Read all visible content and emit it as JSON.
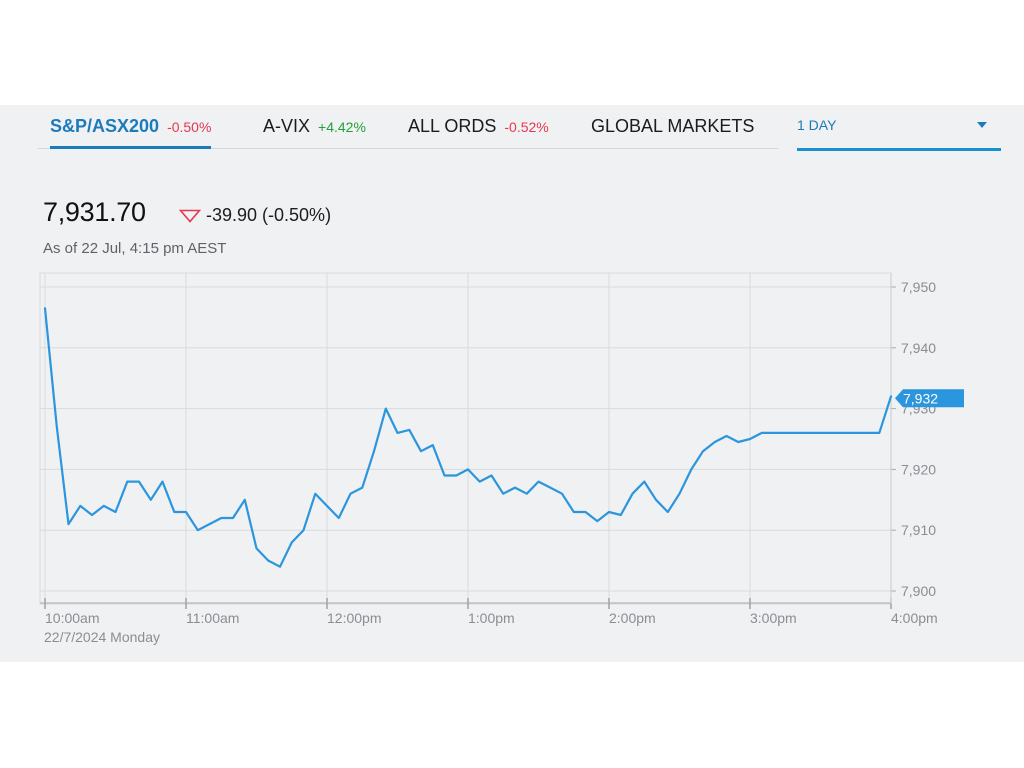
{
  "tabs": [
    {
      "name": "S&P/ASX200",
      "change": "-0.50%",
      "change_color": "#e8384f",
      "active": true
    },
    {
      "name": "A-VIX",
      "change": "+4.42%",
      "change_color": "#22a03c",
      "active": false
    },
    {
      "name": "ALL ORDS",
      "change": "-0.52%",
      "change_color": "#e8384f",
      "active": false
    },
    {
      "name": "GLOBAL MARKETS",
      "change": "",
      "active": false
    }
  ],
  "period": {
    "label": "1 DAY",
    "icon": "chevron-down-icon"
  },
  "quote": {
    "value": "7,931.70",
    "change": "-39.90 (-0.50%)",
    "direction_icon": "triangle-down-icon",
    "down_color": "#e8384f",
    "as_of": "As of 22 Jul, 4:15 pm AEST"
  },
  "colors": {
    "line": "#2b95dd",
    "grid": "#d8dbde",
    "accent": "#1c7bbd"
  },
  "chart_data": {
    "type": "line",
    "date_label": "22/7/2024 Monday",
    "x_tick_labels": [
      "10:00am",
      "11:00am",
      "12:00pm",
      "1:00pm",
      "2:00pm",
      "3:00pm",
      "4:00pm"
    ],
    "y_tick_labels": [
      "7,950",
      "7,940",
      "7,930",
      "7,920",
      "7,910",
      "7,900"
    ],
    "ylim": [
      7898,
      7951
    ],
    "xlim": [
      "10:00",
      "16:00"
    ],
    "current_value_label": "7,932",
    "current_value": 7931.7,
    "grid": true,
    "series": [
      {
        "x": [
          "10:00",
          "10:05",
          "10:10",
          "10:15",
          "10:20",
          "10:25",
          "10:30",
          "10:35",
          "10:40",
          "10:45",
          "10:50",
          "10:55",
          "11:00",
          "11:05",
          "11:10",
          "11:15",
          "11:20",
          "11:25",
          "11:30",
          "11:35",
          "11:40",
          "11:45",
          "11:50",
          "11:55",
          "12:00",
          "12:05",
          "12:10",
          "12:15",
          "12:20",
          "12:25",
          "12:30",
          "12:35",
          "12:40",
          "12:45",
          "12:50",
          "12:55",
          "13:00",
          "13:05",
          "13:10",
          "13:15",
          "13:20",
          "13:25",
          "13:30",
          "13:35",
          "13:40",
          "13:45",
          "13:50",
          "13:55",
          "14:00",
          "14:05",
          "14:10",
          "14:15",
          "14:20",
          "14:25",
          "14:30",
          "14:35",
          "14:40",
          "14:45",
          "14:50",
          "14:55",
          "15:00",
          "15:05",
          "15:10",
          "15:15",
          "15:20",
          "15:25",
          "15:30",
          "15:35",
          "15:40",
          "15:45",
          "15:50",
          "15:55",
          "16:00"
        ],
        "y": [
          7946.5,
          7927,
          7911,
          7914,
          7912.5,
          7914,
          7913,
          7918,
          7918,
          7915,
          7918,
          7913,
          7913,
          7910,
          7911,
          7912,
          7912,
          7915,
          7907,
          7905,
          7904,
          7908,
          7910,
          7916,
          7914,
          7912,
          7916,
          7917,
          7923,
          7930,
          7926,
          7926.5,
          7923,
          7924,
          7919,
          7919,
          7920,
          7918,
          7919,
          7916,
          7917,
          7916,
          7918,
          7917,
          7916,
          7913,
          7913,
          7911.5,
          7913,
          7912.5,
          7916,
          7918,
          7915,
          7913,
          7916,
          7920,
          7923,
          7924.5,
          7925.5,
          7924.5,
          7925,
          7926,
          7926,
          7926,
          7926,
          7926,
          7926,
          7926,
          7926,
          7926,
          7926,
          7926,
          7932
        ]
      }
    ]
  }
}
